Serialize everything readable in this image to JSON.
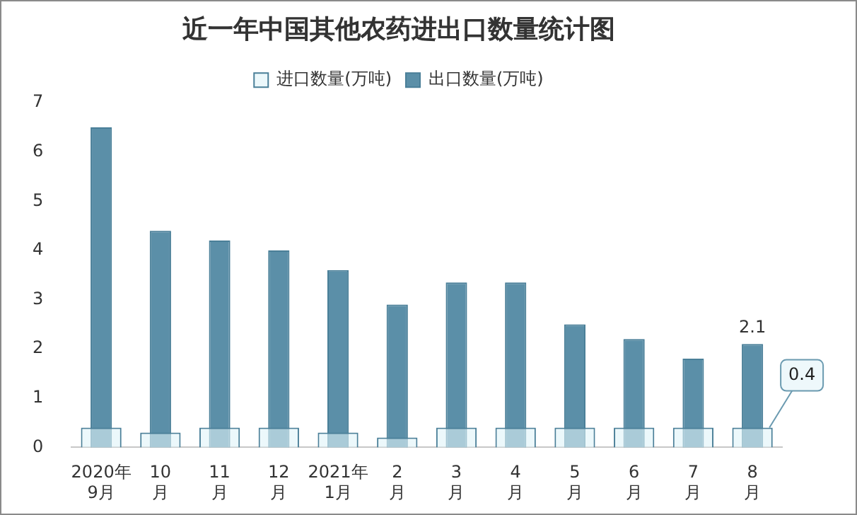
{
  "chart_data": {
    "type": "bar",
    "title": "近一年中国其他农药进出口数量统计图",
    "categories": [
      "2020年\n9月",
      "10\n月",
      "11\n月",
      "12\n月",
      "2021年\n1月",
      "2\n月",
      "3\n月",
      "4\n月",
      "5\n月",
      "6\n月",
      "7\n月",
      "8\n月"
    ],
    "series": [
      {
        "name": "进口数量(万吨)",
        "color": "#dff3f9",
        "values": [
          0.4,
          0.3,
          0.4,
          0.4,
          0.3,
          0.2,
          0.4,
          0.4,
          0.4,
          0.4,
          0.4,
          0.4
        ],
        "value_labels": [
          null,
          null,
          null,
          null,
          null,
          null,
          null,
          null,
          null,
          null,
          null,
          "0.4"
        ]
      },
      {
        "name": "出口数量(万吨)",
        "color": "#5b8fa8",
        "values": [
          6.5,
          4.4,
          4.2,
          4.0,
          3.6,
          2.9,
          3.35,
          3.35,
          2.5,
          2.2,
          1.8,
          2.1
        ],
        "value_labels": [
          null,
          null,
          null,
          null,
          null,
          null,
          null,
          null,
          null,
          null,
          null,
          "2.1"
        ]
      }
    ],
    "ylim": [
      0,
      7
    ],
    "yticks": [
      0,
      1,
      2,
      3,
      4,
      5,
      6,
      7
    ],
    "grid": false,
    "legend": "top"
  }
}
